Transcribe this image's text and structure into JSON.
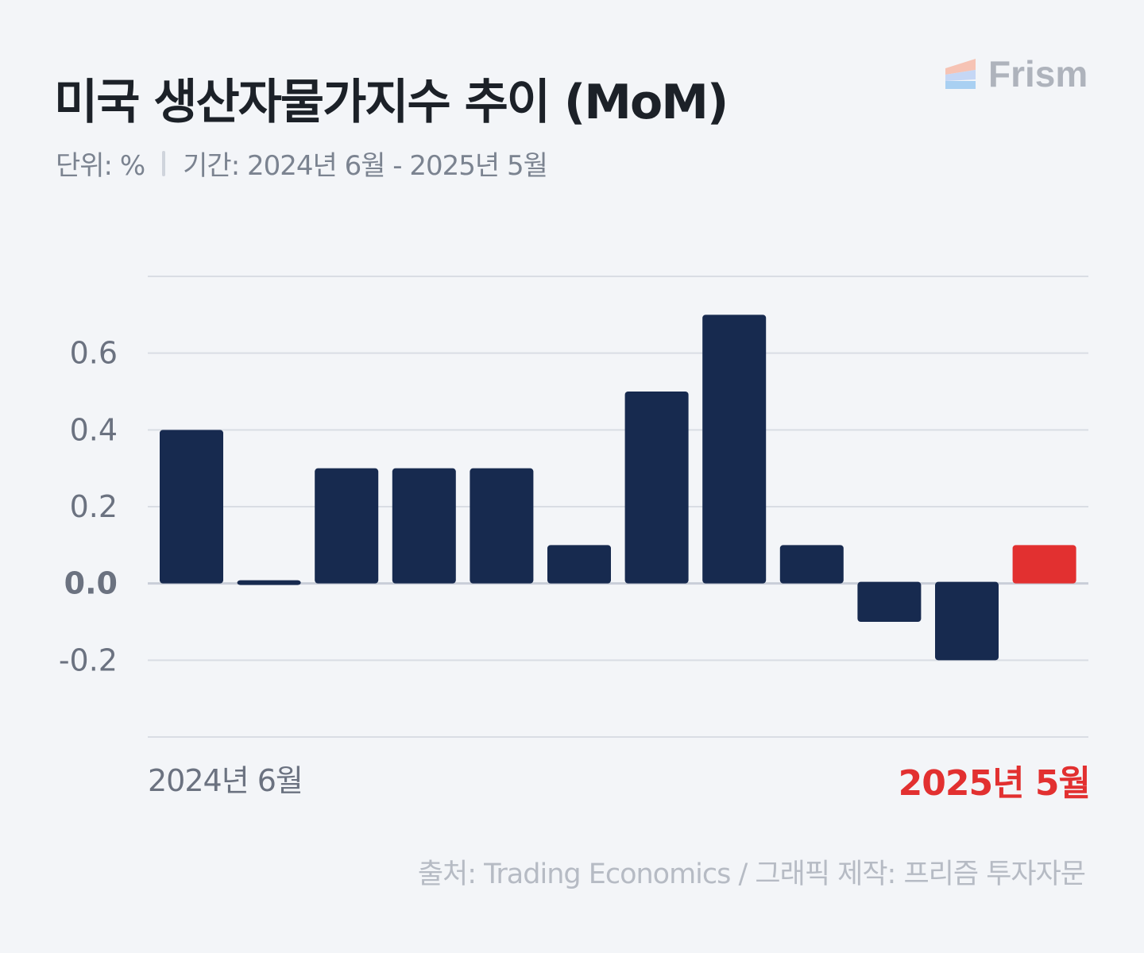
{
  "header": {
    "title": "미국 생산자물가지수 추이 (MoM)",
    "unit_label": "단위: %",
    "period_label": "기간: 2024년 6월 - 2025년 5월",
    "brand": "Frism"
  },
  "colors": {
    "bar": "#172a4f",
    "highlight": "#e23030",
    "background": "#f3f5f8"
  },
  "chart_data": {
    "type": "bar",
    "categories": [
      "2024-06",
      "2024-07",
      "2024-08",
      "2024-09",
      "2024-10",
      "2024-11",
      "2024-12",
      "2025-01",
      "2025-02",
      "2025-03",
      "2025-04",
      "2025-05"
    ],
    "values": [
      0.4,
      0.0,
      0.3,
      0.3,
      0.3,
      0.1,
      0.5,
      0.7,
      0.1,
      -0.1,
      -0.2,
      0.1
    ],
    "highlight_index": 11,
    "yticks": [
      "0.6",
      "0.4",
      "0.2",
      "0.0",
      "-0.2"
    ],
    "ylim": [
      -0.4,
      0.8
    ],
    "grid": true,
    "x_start_label": "2024년 6월",
    "x_end_label": "2025년 5월"
  },
  "footer": {
    "source": "출처: Trading Economics / 그래픽 제작: 프리즘 투자자문"
  }
}
